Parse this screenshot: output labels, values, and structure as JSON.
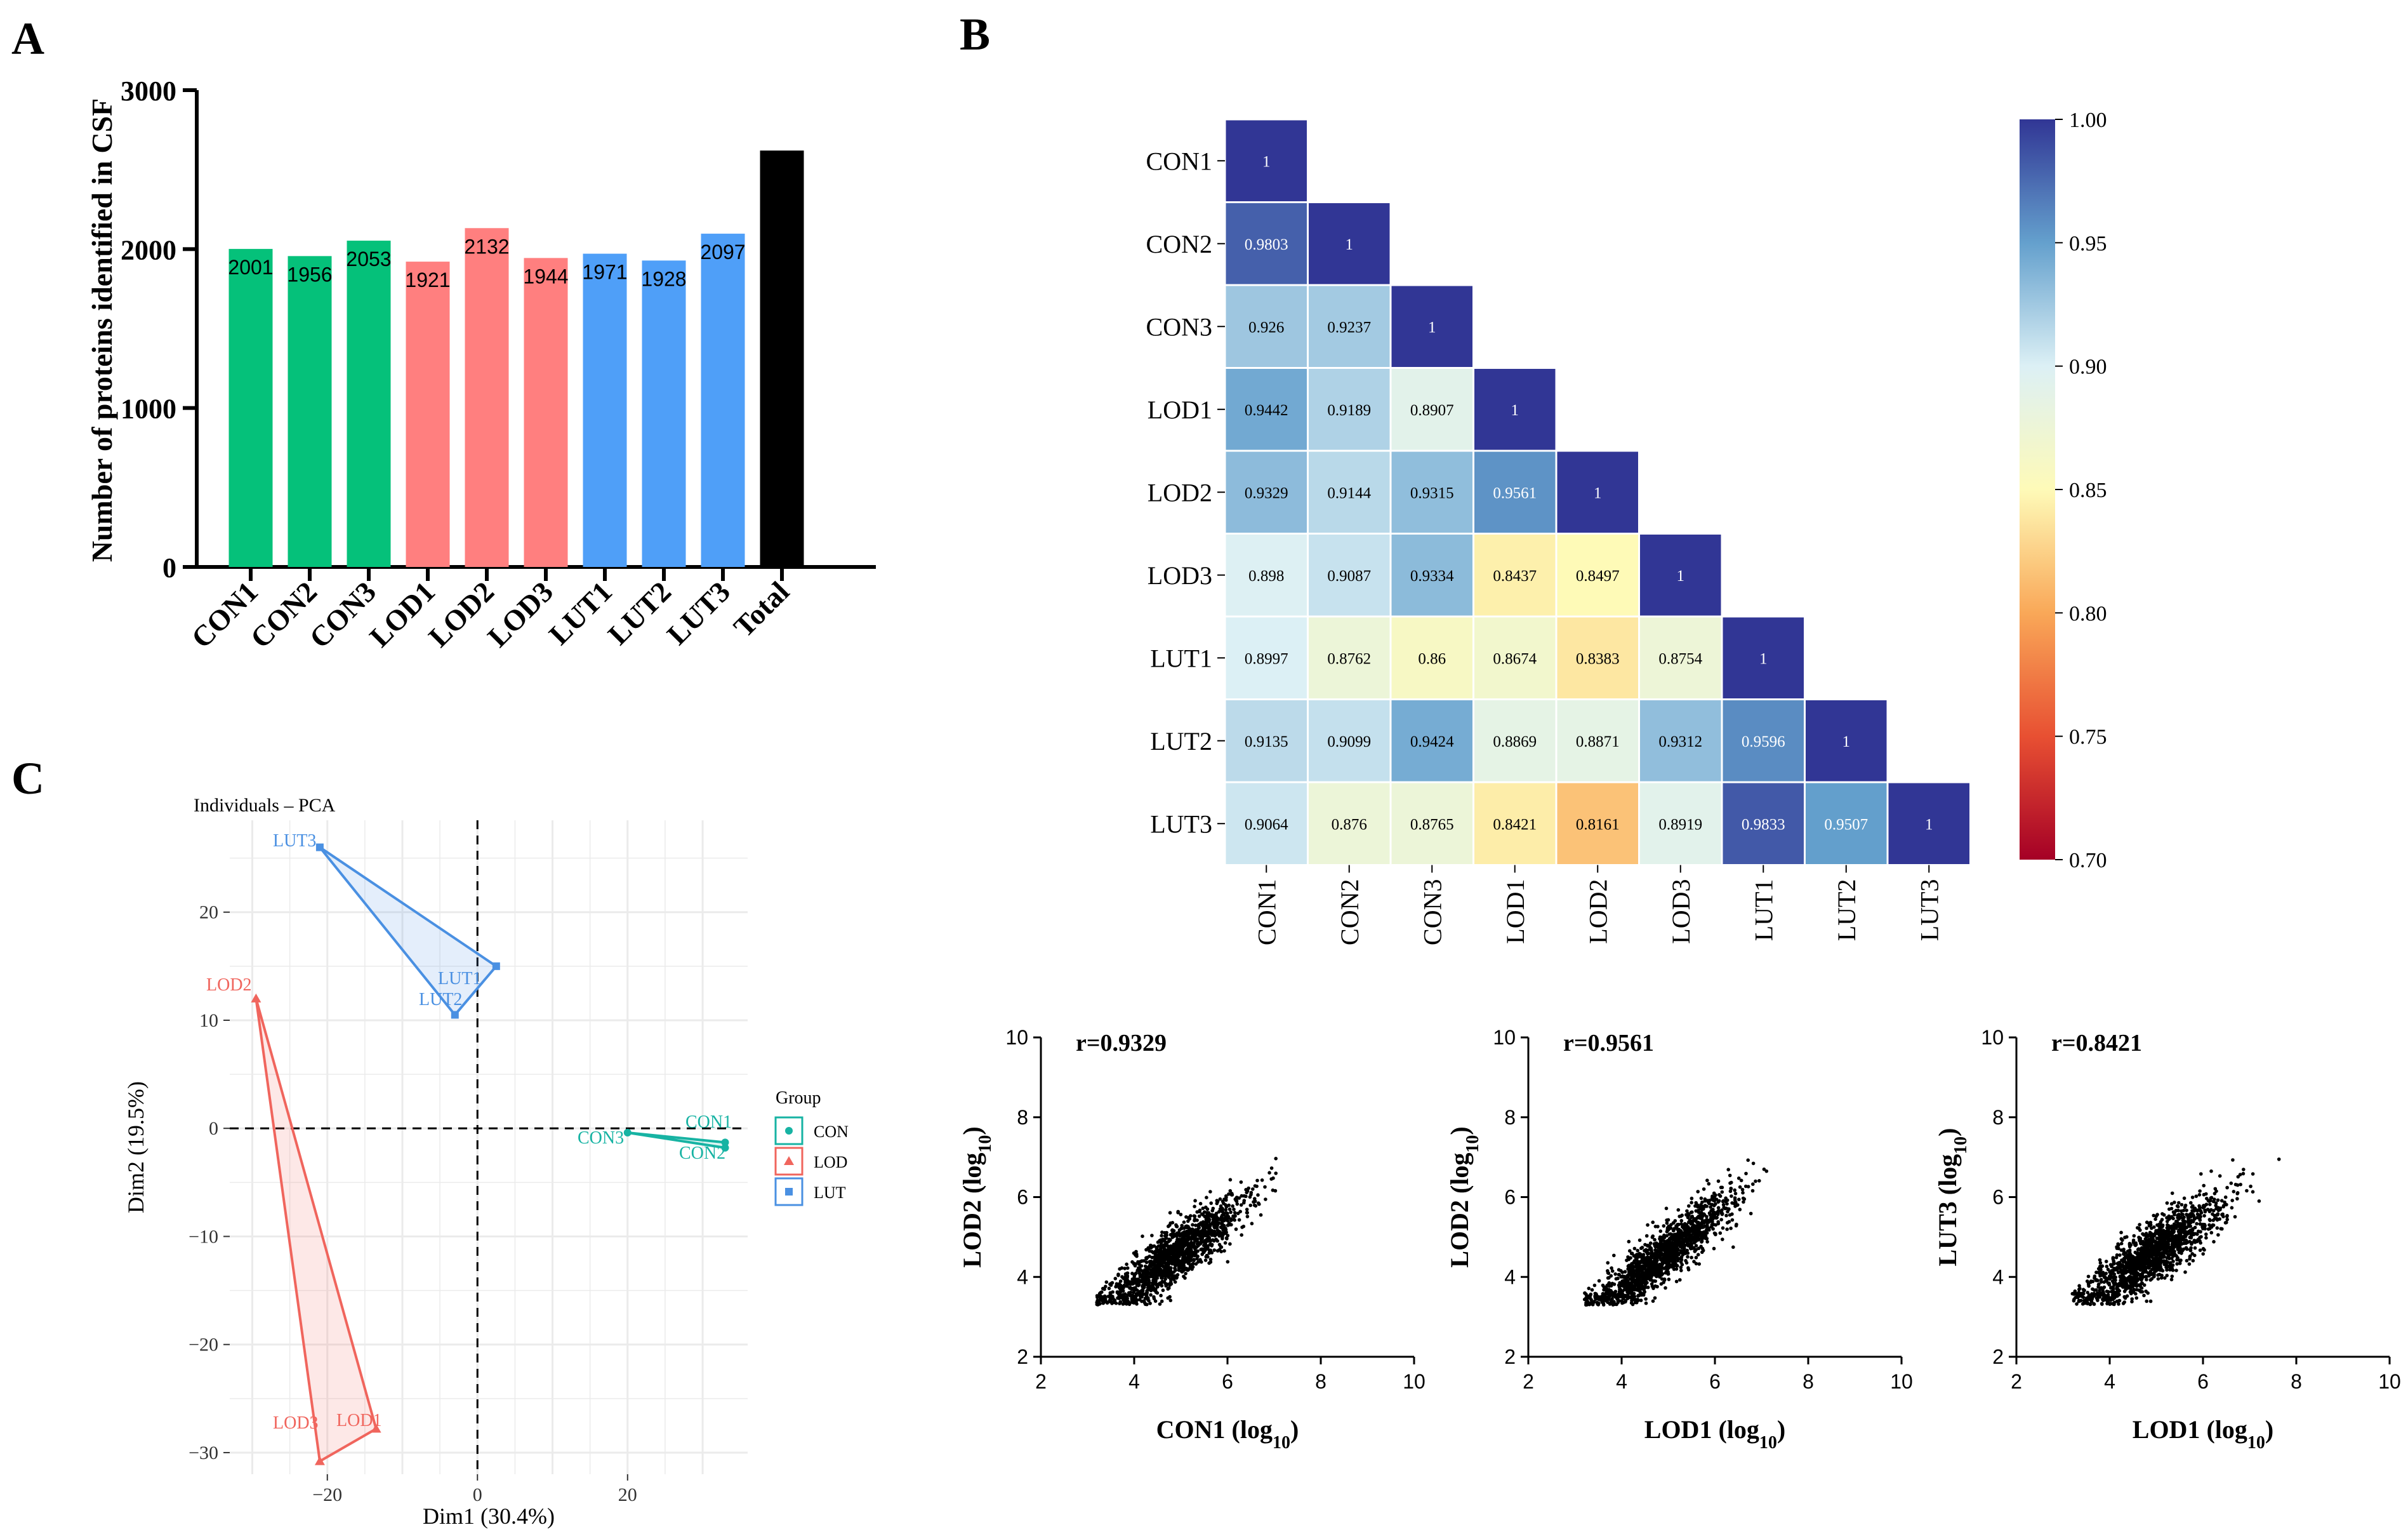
{
  "panels": {
    "a": "A",
    "b": "B",
    "c": "C"
  },
  "chart_data": [
    {
      "id": "bar",
      "type": "bar",
      "ylabel": "Number of proteins identified in CSF",
      "xlabel": "",
      "ylim": [
        0,
        3000
      ],
      "yticks": [
        "0",
        "1000",
        "2000",
        "3000"
      ],
      "categories": [
        "CON1",
        "CON2",
        "CON3",
        "LOD1",
        "LOD2",
        "LOD3",
        "LUT1",
        "LUT2",
        "LUT3",
        "Total"
      ],
      "values": [
        2001,
        1956,
        2053,
        1921,
        2132,
        1944,
        1971,
        1928,
        2097,
        2620
      ],
      "labels": [
        "2001",
        "1956",
        "2053",
        "1921",
        "2132",
        "1944",
        "1971",
        "1928",
        "2097",
        ""
      ],
      "colors": [
        "#05c17a",
        "#05c17a",
        "#05c17a",
        "#ff7f7f",
        "#ff7f7f",
        "#ff7f7f",
        "#4f9ff8",
        "#4f9ff8",
        "#4f9ff8",
        "#000000"
      ]
    },
    {
      "id": "heatmap",
      "type": "heatmap",
      "samples": [
        "CON1",
        "CON2",
        "CON3",
        "LOD1",
        "LOD2",
        "LOD3",
        "LUT1",
        "LUT2",
        "LUT3"
      ],
      "matrix": [
        [
          "1"
        ],
        [
          "0.9803",
          "1"
        ],
        [
          "0.926",
          "0.9237",
          "1"
        ],
        [
          "0.9442",
          "0.9189",
          "0.8907",
          "1"
        ],
        [
          "0.9329",
          "0.9144",
          "0.9315",
          "0.9561",
          "1"
        ],
        [
          "0.898",
          "0.9087",
          "0.9334",
          "0.8437",
          "0.8497",
          "1"
        ],
        [
          "0.8997",
          "0.8762",
          "0.86",
          "0.8674",
          "0.8383",
          "0.8754",
          "1"
        ],
        [
          "0.9135",
          "0.9099",
          "0.9424",
          "0.8869",
          "0.8871",
          "0.9312",
          "0.9596",
          "1"
        ],
        [
          "0.9064",
          "0.876",
          "0.8765",
          "0.8421",
          "0.8161",
          "0.8919",
          "0.9833",
          "0.9507",
          "1"
        ]
      ],
      "colorbar": {
        "min": 0.7,
        "max": 1.0,
        "ticks": [
          "1.00",
          "0.95",
          "0.90",
          "0.85",
          "0.80",
          "0.75",
          "0.70"
        ]
      }
    },
    {
      "id": "pca",
      "type": "scatter",
      "title": "Individuals – PCA",
      "xlabel": "Dim1 (30.4%)",
      "ylabel": "Dim2 (19.5%)",
      "xlim": [
        -33,
        36
      ],
      "ylim": [
        -32,
        28.5
      ],
      "xticks": [
        {
          "v": -20,
          "t": "−20"
        },
        {
          "v": 0,
          "t": "0"
        },
        {
          "v": 20,
          "t": "20"
        }
      ],
      "yticks": [
        {
          "v": 20,
          "t": "20"
        },
        {
          "v": 10,
          "t": "10"
        },
        {
          "v": 0,
          "t": "0"
        },
        {
          "v": -10,
          "t": "−10"
        },
        {
          "v": -20,
          "t": "−20"
        },
        {
          "v": -30,
          "t": "−30"
        }
      ],
      "legend_title": "Group",
      "groups": [
        {
          "name": "CON",
          "color": "#17b3a3",
          "points": [
            {
              "label": "CON1",
              "x": 33,
              "y": -1.3
            },
            {
              "label": "CON2",
              "x": 33,
              "y": -1.8
            },
            {
              "label": "CON3",
              "x": 20,
              "y": -0.4
            }
          ]
        },
        {
          "name": "LOD",
          "color": "#f0655d",
          "points": [
            {
              "label": "LOD1",
              "x": -13.5,
              "y": -27.8
            },
            {
              "label": "LOD2",
              "x": -29.5,
              "y": 12
            },
            {
              "label": "LOD3",
              "x": -21,
              "y": -30.8
            }
          ]
        },
        {
          "name": "LUT",
          "color": "#4a90e2",
          "points": [
            {
              "label": "LUT1",
              "x": 2.5,
              "y": 15
            },
            {
              "label": "LUT2",
              "x": -3,
              "y": 10.5
            },
            {
              "label": "LUT3",
              "x": -21,
              "y": 26
            }
          ]
        }
      ]
    },
    {
      "id": "scatter1",
      "type": "scatter",
      "r_label": "r=0.9329",
      "xlabel": "CON1",
      "ylabel": "LOD2",
      "log_sub": "10",
      "xlim": [
        2,
        10
      ],
      "ylim": [
        2,
        10
      ],
      "ticks": [
        "2",
        "4",
        "6",
        "8",
        "10"
      ],
      "slope": 0.86
    },
    {
      "id": "scatter2",
      "type": "scatter",
      "r_label": "r=0.9561",
      "xlabel": "LOD1",
      "ylabel": "LOD2",
      "log_sub": "10",
      "xlim": [
        2,
        10
      ],
      "ylim": [
        2,
        10
      ],
      "ticks": [
        "2",
        "4",
        "6",
        "8",
        "10"
      ],
      "slope": 0.9
    },
    {
      "id": "scatter3",
      "type": "scatter",
      "r_label": "r=0.8421",
      "xlabel": "LOD1",
      "ylabel": "LUT3",
      "log_sub": "10",
      "xlim": [
        2,
        10
      ],
      "ylim": [
        2,
        10
      ],
      "ticks": [
        "2",
        "4",
        "6",
        "8",
        "10"
      ],
      "slope": 0.8
    }
  ]
}
